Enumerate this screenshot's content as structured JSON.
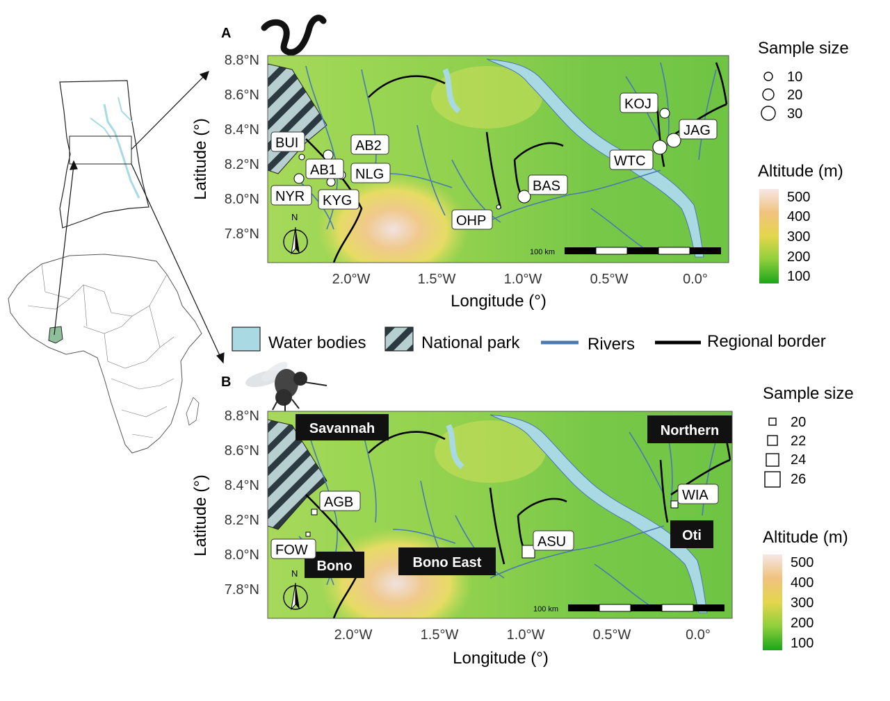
{
  "panel_a": {
    "label": "A",
    "x_label": "Longitude (°)",
    "y_label": "Latitude (°)",
    "x_ticks": [
      "2.0°W",
      "1.5°W",
      "1.0°W",
      "0.5°W",
      "0.0°"
    ],
    "y_ticks": [
      "8.8°N",
      "8.6°N",
      "8.4°N",
      "8.2°N",
      "8.0°N",
      "7.8°N"
    ],
    "scale_label": "100 km",
    "north_label": "N",
    "sites": [
      "BUI",
      "AB2",
      "AB1",
      "NLG",
      "NYR",
      "KYG",
      "OHP",
      "BAS",
      "KOJ",
      "JAG",
      "WTC"
    ],
    "legend": {
      "size_title": "Sample size",
      "sizes": [
        "10",
        "20",
        "30"
      ],
      "alt_title": "Altitude (m)",
      "alt_ticks": [
        "500",
        "400",
        "300",
        "200",
        "100"
      ]
    }
  },
  "panel_b": {
    "label": "B",
    "x_label": "Longitude (°)",
    "y_label": "Latitude (°)",
    "x_ticks": [
      "2.0°W",
      "1.5°W",
      "1.0°W",
      "0.5°W",
      "0.0°"
    ],
    "y_ticks": [
      "8.8°N",
      "8.6°N",
      "8.4°N",
      "8.2°N",
      "8.0°N",
      "7.8°N"
    ],
    "scale_label": "100 km",
    "north_label": "N",
    "sites": [
      "AGB",
      "FOW",
      "ASU",
      "WIA"
    ],
    "regions": [
      "Savannah",
      "Northern",
      "Bono",
      "Bono East",
      "Oti"
    ],
    "legend": {
      "size_title": "Sample size",
      "sizes": [
        "20",
        "22",
        "24",
        "26"
      ],
      "alt_title": "Altitude (m)",
      "alt_ticks": [
        "500",
        "400",
        "300",
        "200",
        "100"
      ]
    }
  },
  "shared_legend": {
    "water": "Water bodies",
    "park": "National park",
    "rivers": "Rivers",
    "border": "Regional border"
  },
  "colors": {
    "water": "#a9d9e2",
    "river": "#4a78b0",
    "park_fill": "#b8cfd2",
    "low": "#3db43d",
    "mid": "#9ad652",
    "high": "#f2c27a",
    "peak": "#f4e4e0"
  }
}
